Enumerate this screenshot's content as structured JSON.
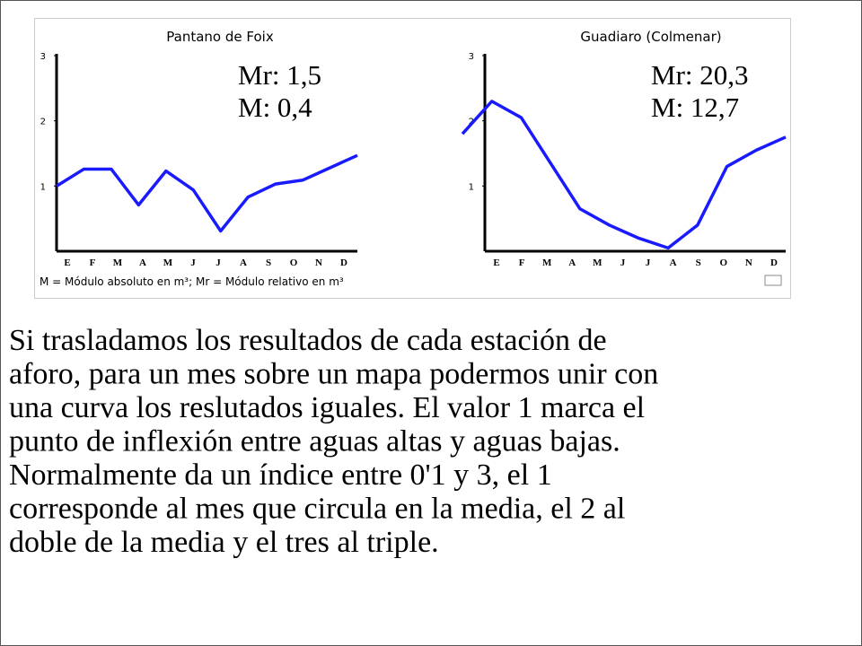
{
  "chart_data": [
    {
      "type": "line",
      "title": "Pantano de Foix",
      "annotations": [
        "Mr: 1,5",
        "M: 0,4"
      ],
      "categories": [
        "E",
        "F",
        "M",
        "A",
        "M",
        "J",
        "J",
        "A",
        "S",
        "O",
        "N",
        "D"
      ],
      "series": [
        {
          "color": "#1a1aff",
          "values": [
            1.0,
            1.26,
            1.26,
            0.71,
            1.23,
            0.94,
            0.31,
            0.83,
            1.03,
            1.09,
            1.28,
            1.47
          ]
        }
      ],
      "ylim": [
        0,
        3
      ],
      "yticks": [
        1,
        2,
        3
      ]
    },
    {
      "type": "line",
      "title": "Guadiaro (Colmenar)",
      "annotations": [
        "Mr: 20,3",
        "M: 12,7"
      ],
      "categories": [
        "E",
        "F",
        "M",
        "A",
        "M",
        "J",
        "J",
        "A",
        "S",
        "O",
        "N",
        "D"
      ],
      "series": [
        {
          "color": "#1a1aff",
          "values": [
            1.8,
            2.3,
            2.05,
            1.35,
            0.65,
            0.4,
            0.2,
            0.05,
            0.4,
            1.3,
            1.55,
            1.75
          ]
        }
      ],
      "ylim": [
        0,
        3
      ],
      "yticks": [
        1,
        2,
        3
      ]
    }
  ],
  "footnote": "M = Módulo absoluto en m³; Mr = Módulo relativo en m³",
  "body": {
    "lines": [
      "Si trasladamos los resultados de cada estación de",
      "aforo, para un mes sobre un mapa podermos unir con",
      "una curva los reslutados iguales. El valor 1 marca el",
      "punto de inflexión entre aguas altas y aguas bajas.",
      "Normalmente da un índice entre 0'1 y 3, el 1",
      "corresponde al mes que circula en la media, el 2 al",
      "doble de la media y el tres al triple."
    ]
  }
}
